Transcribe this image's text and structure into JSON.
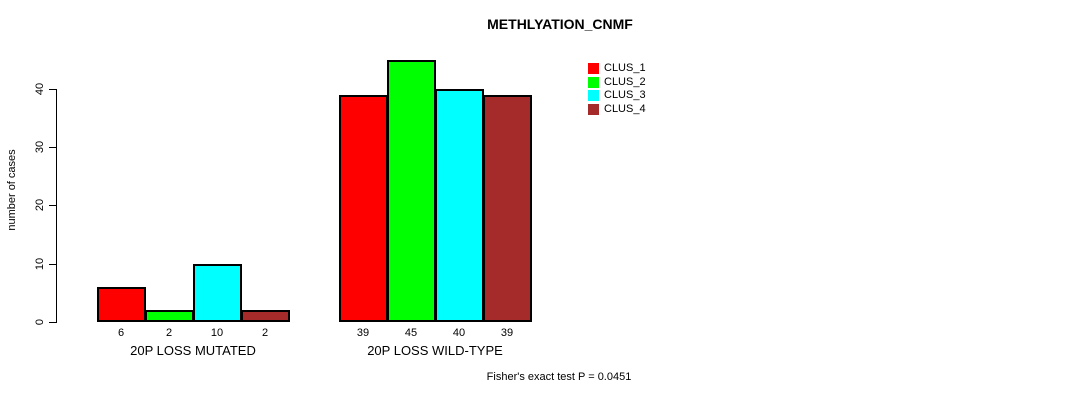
{
  "chart_data": {
    "type": "bar",
    "title": "METHLYATION_CNMF",
    "ylabel": "number of cases",
    "xlabel": "",
    "annotation": "Fisher's exact test P = 0.0451",
    "categories": [
      "20P LOSS MUTATED",
      "20P LOSS WILD-TYPE"
    ],
    "series": [
      {
        "name": "CLUS_1",
        "color": "#ff0000",
        "values": [
          6,
          39
        ]
      },
      {
        "name": "CLUS_2",
        "color": "#00ff00",
        "values": [
          2,
          45
        ]
      },
      {
        "name": "CLUS_3",
        "color": "#00ffff",
        "values": [
          10,
          40
        ]
      },
      {
        "name": "CLUS_4",
        "color": "#a52a2a",
        "values": [
          2,
          39
        ]
      }
    ],
    "yticks": [
      0,
      10,
      20,
      30,
      40
    ],
    "ylim": [
      0,
      45
    ],
    "grid": false,
    "bar_value_labels_shown": true,
    "legend": {
      "position": "top-right",
      "entries": [
        "CLUS_1",
        "CLUS_2",
        "CLUS_3",
        "CLUS_4"
      ]
    },
    "colors": {
      "background": "#ffffff",
      "axis": "#000000",
      "text": "#000000"
    }
  }
}
